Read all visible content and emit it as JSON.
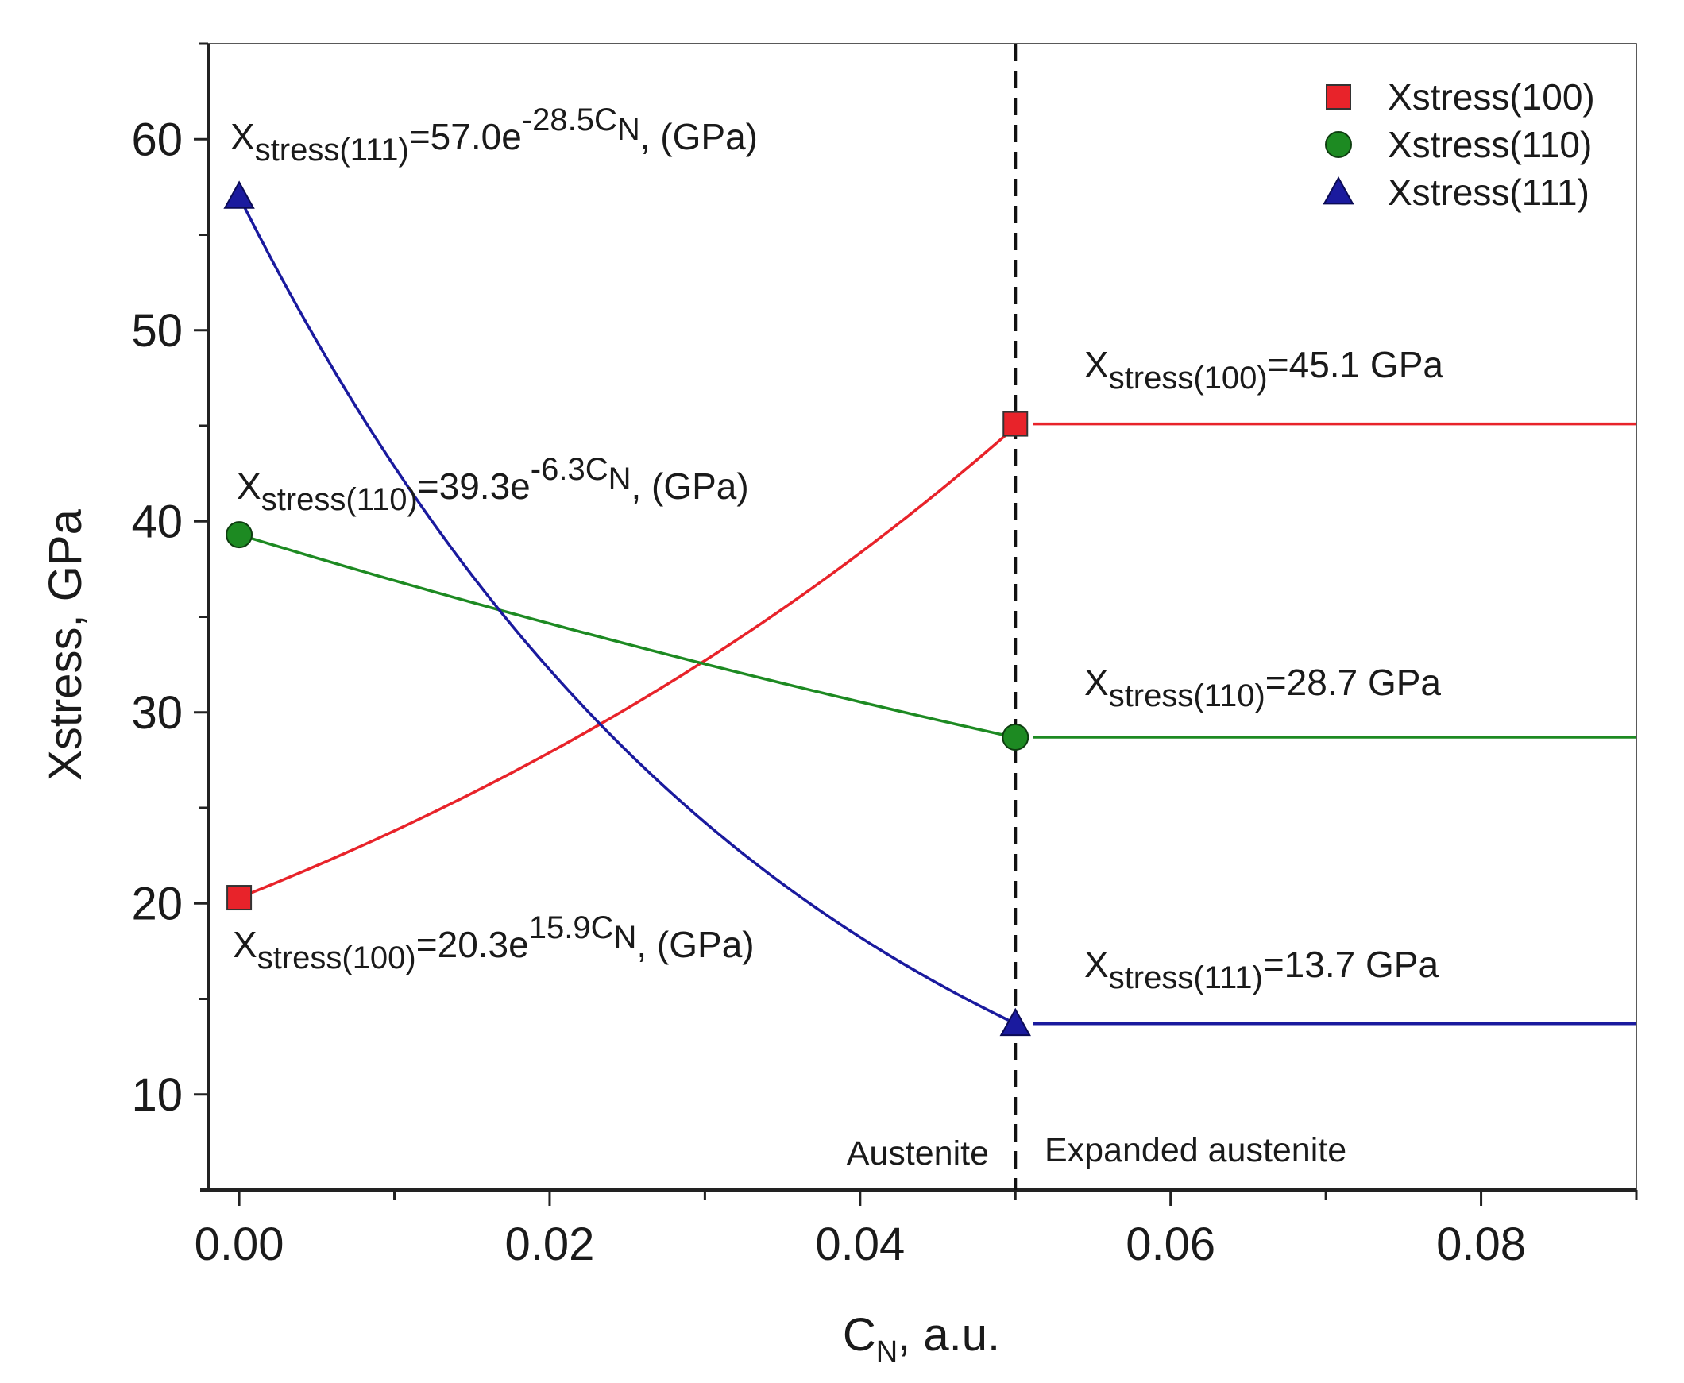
{
  "chart_data": {
    "type": "line",
    "xlabel": {
      "main": "C",
      "sub": "N",
      "rest": ", a.u."
    },
    "ylabel": "Xstress, GPa",
    "xlim": [
      -0.002,
      0.09
    ],
    "ylim": [
      5,
      65
    ],
    "x_ticks": [
      0.0,
      0.02,
      0.04,
      0.06,
      0.08
    ],
    "x_tick_labels": [
      "0.00",
      "0.02",
      "0.04",
      "0.06",
      "0.08"
    ],
    "x_minor_ticks": [
      0.01,
      0.03,
      0.05,
      0.07,
      0.09
    ],
    "y_ticks": [
      10,
      20,
      30,
      40,
      50,
      60
    ],
    "y_tick_labels": [
      "10",
      "20",
      "30",
      "40",
      "50",
      "60"
    ],
    "y_minor_ticks": [
      15,
      25,
      35,
      45,
      55,
      65
    ],
    "grid": false,
    "legend_position": "top-right",
    "divider_x": 0.05,
    "series": [
      {
        "name": "Xstress(100)",
        "color": "#e8232a",
        "marker": "square",
        "fit": {
          "a": 20.3,
          "b": 15.9
        },
        "points": [
          {
            "x": 0.0,
            "y": 20.3
          },
          {
            "x": 0.05,
            "y": 45.1
          }
        ],
        "plateau": 45.1
      },
      {
        "name": "Xstress(110)",
        "color": "#1d8a22",
        "marker": "circle",
        "fit": {
          "a": 39.3,
          "b": -6.3
        },
        "points": [
          {
            "x": 0.0,
            "y": 39.3
          },
          {
            "x": 0.05,
            "y": 28.7
          }
        ],
        "plateau": 28.7
      },
      {
        "name": "Xstress(111)",
        "color": "#1a1a9e",
        "marker": "triangle",
        "fit": {
          "a": 57.0,
          "b": -28.5
        },
        "points": [
          {
            "x": 0.0,
            "y": 57.0
          },
          {
            "x": 0.05,
            "y": 13.7
          }
        ],
        "plateau": 13.7
      }
    ],
    "annotations": {
      "eq111": {
        "base": "X",
        "sub": "stress(111)",
        "mid": "=57.0e",
        "sup": "-28.5C",
        "supsub": "N",
        "tail": ", (GPa)"
      },
      "eq110": {
        "base": "X",
        "sub": "stress(110)",
        "mid": "=39.3e",
        "sup": "-6.3C",
        "supsub": "N",
        "tail": ", (GPa)"
      },
      "eq100": {
        "base": "X",
        "sub": "stress(100)",
        "mid": "=20.3e",
        "sup": "15.9C",
        "supsub": "N",
        "tail": ", (GPa)"
      },
      "val100": {
        "base": "X",
        "sub": "stress(100)",
        "tail": "=45.1 GPa"
      },
      "val110": {
        "base": "X",
        "sub": "stress(110)",
        "tail": "=28.7 GPa"
      },
      "val111": {
        "base": "X",
        "sub": "stress(111)",
        "tail": "=13.7 GPa"
      },
      "region_left": "Austenite",
      "region_right": "Expanded austenite"
    }
  }
}
